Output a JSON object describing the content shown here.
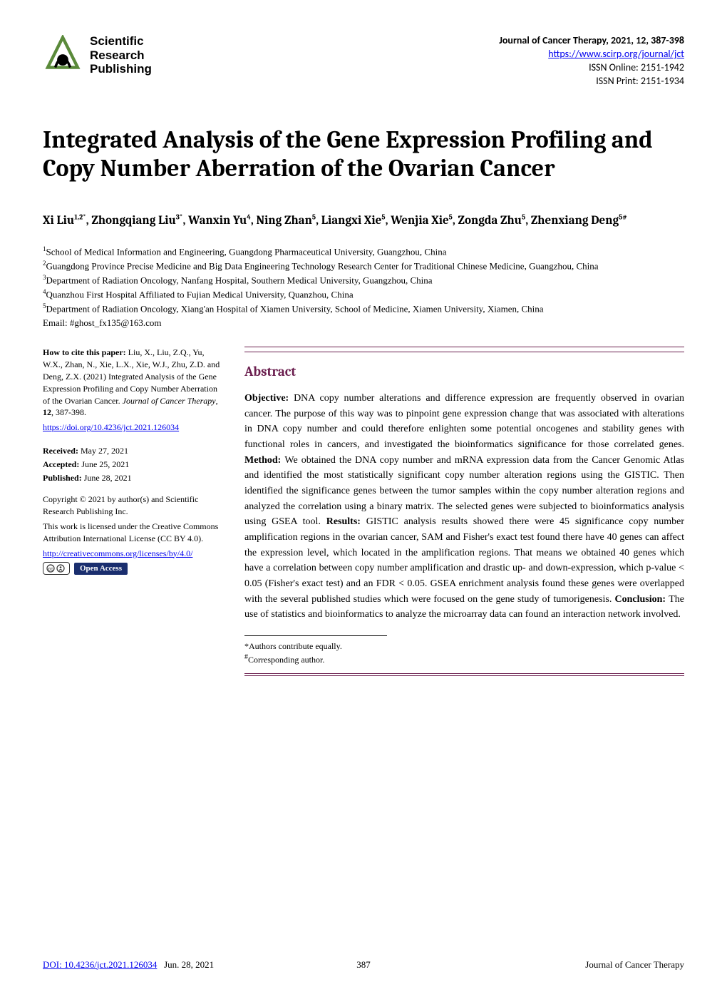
{
  "logo": {
    "line1": "Scientific",
    "line2": "Research",
    "line3": "Publishing"
  },
  "journal": {
    "title": "Journal of Cancer Therapy, 2021, 12, 387-398",
    "url": "https://www.scirp.org/journal/jct",
    "issn_online": "ISSN Online: 2151-1942",
    "issn_print": "ISSN Print: 2151-1934"
  },
  "title": "Integrated Analysis of the Gene Expression Profiling and Copy Number Aberration of the Ovarian Cancer",
  "authors_html": "Xi Liu<sup>1,2*</sup>, Zhongqiang Liu<sup>3*</sup>, Wanxin Yu<sup>4</sup>, Ning Zhan<sup>5</sup>, Liangxi Xie<sup>5</sup>, Wenjia Xie<sup>5</sup>, Zongda Zhu<sup>5</sup>, Zhenxiang Deng<sup>5#</sup>",
  "affiliations": [
    "School of Medical Information and Engineering, Guangdong Pharmaceutical University, Guangzhou, China",
    "Guangdong Province Precise Medicine and Big Data Engineering Technology Research Center for Traditional Chinese Medicine, Guangzhou, China",
    "Department of Radiation Oncology, Nanfang Hospital, Southern Medical University, Guangzhou, China",
    "Quanzhou First Hospital Affiliated to Fujian Medical University, Quanzhou, China",
    "Department of Radiation Oncology, Xiang'an Hospital of Xiamen University, School of Medicine, Xiamen University, Xiamen, China"
  ],
  "email": "Email: #ghost_fx135@163.com",
  "cite": {
    "head": "How to cite this paper: ",
    "body": "Liu, X., Liu, Z.Q., Yu, W.X., Zhan, N., Xie, L.X., Xie, W.J., Zhu, Z.D. and Deng, Z.X. (2021) Integrated Analysis of the Gene Expression Profiling and Copy Number Aberration of the Ovarian Cancer. ",
    "journal_italic": "Journal of Cancer Therapy",
    "vol": ", 12, 387-398.",
    "doi_url": "https://doi.org/10.4236/jct.2021.126034"
  },
  "dates": {
    "received": "Received: May 27, 2021",
    "accepted": "Accepted: June 25, 2021",
    "published": "Published: June 28, 2021"
  },
  "copyright": {
    "line1": "Copyright © 2021 by author(s) and Scientific Research Publishing Inc.",
    "line2": "This work is licensed under the Creative Commons Attribution International License (CC BY 4.0).",
    "cc_url": "http://creativecommons.org/licenses/by/4.0/",
    "open_access": "Open Access"
  },
  "abstract": {
    "heading": "Abstract",
    "objective_label": "Objective: ",
    "objective": "DNA copy number alterations and difference expression are frequently observed in ovarian cancer. The purpose of this way was to pinpoint gene expression change that was associated with alterations in DNA copy number and could therefore enlighten some potential oncogenes and stability genes with functional roles in cancers, and investigated the bioinformatics significance for those correlated genes. ",
    "method_label": "Method: ",
    "method": "We obtained the DNA copy number and mRNA expression data from the Cancer Genomic Atlas and identified the most statistically significant copy number alteration regions using the GISTIC. Then identified the significance genes between the tumor samples within the copy number alteration regions and analyzed the correlation using a binary matrix. The selected genes were subjected to bioinformatics analysis using GSEA tool. ",
    "results_label": "Results: ",
    "results": "GISTIC analysis results showed there were 45 significance copy number amplification regions in the ovarian cancer, SAM and Fisher's exact test found there have 40 genes can affect the expression level, which located in the amplification regions. That means we obtained 40 genes which have a correlation between copy number amplification and drastic up- and down-expression, which p-value < 0.05 (Fisher's exact test) and an FDR < 0.05. GSEA enrichment analysis found these genes were overlapped with the several published studies which were focused on the gene study of tumorigenesis. ",
    "conclusion_label": "Conclusion: ",
    "conclusion": "The use of statistics and bioinformatics to analyze the microarray data can found an interaction network involved."
  },
  "footnotes": {
    "equal": "*Authors contribute equally.",
    "corresponding": "#Corresponding author."
  },
  "footer": {
    "doi": "DOI: 10.4236/jct.2021.126034",
    "date": "Jun. 28, 2021",
    "page": "387",
    "journal": "Journal of Cancer Therapy"
  },
  "colors": {
    "accent": "#6b1f4f",
    "link": "#0000ee",
    "nav_blue": "#1a2e6e"
  }
}
